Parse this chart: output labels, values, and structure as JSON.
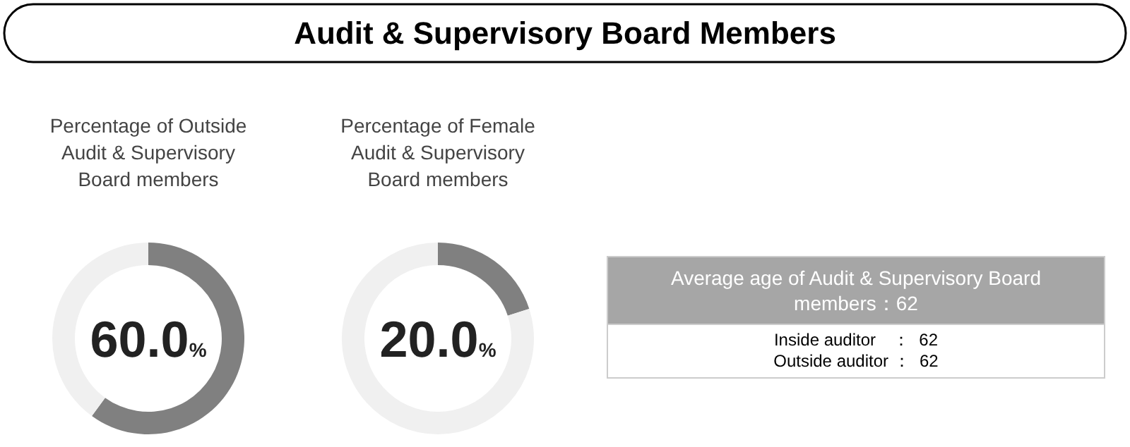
{
  "chart_data": [
    {
      "type": "other",
      "title": "Audit & Supervisory Board Members"
    },
    {
      "type": "donut",
      "title": "Percentage of Outside Audit & Supervisory Board members",
      "categories": [
        null,
        null
      ],
      "values": [
        60,
        40
      ],
      "colors": [
        "#808080",
        "#f0f0f0"
      ],
      "annotations": [
        "60.0%"
      ]
    },
    {
      "type": "donut",
      "title": "Percentage of Female Audit & Supervisory Board members",
      "categories": [
        null,
        null
      ],
      "values": [
        20,
        80
      ],
      "colors": [
        "#808080",
        "#f0f0f0"
      ],
      "annotations": [
        "20.0%"
      ]
    },
    {
      "type": "other",
      "title": "Average age of Audit & Supervisory Board members：62",
      "annotations": [
        "Inside auditor　：  62",
        "Outside auditor ：  62"
      ]
    }
  ]
}
